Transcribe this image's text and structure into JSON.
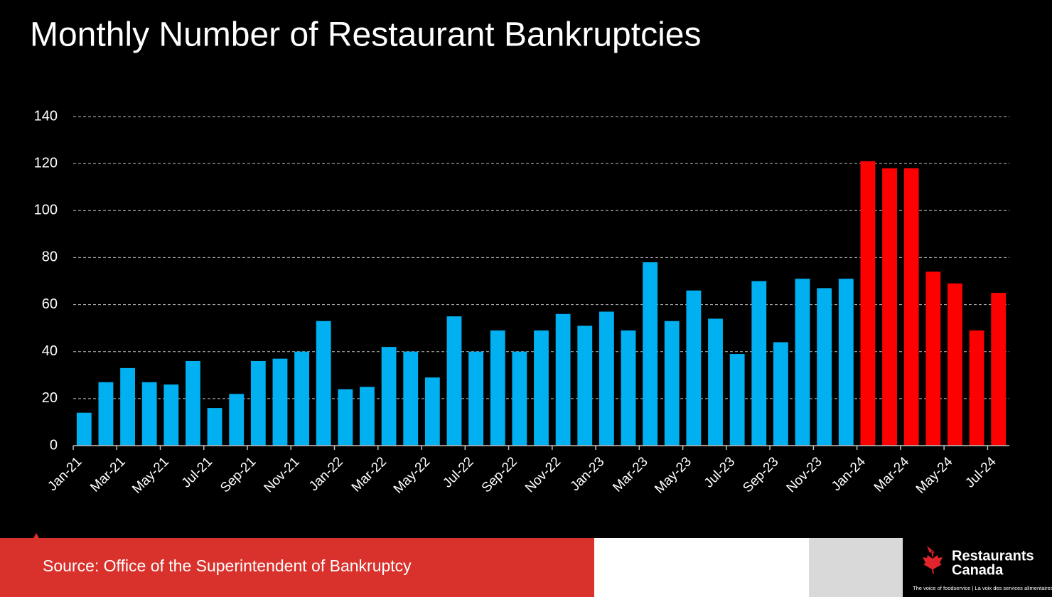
{
  "chart_data": {
    "type": "bar",
    "title": "Monthly Number of Restaurant Bankruptcies",
    "source": "Source: Office of the Superintendent of Bankruptcy",
    "categories": [
      "Jan-21",
      null,
      "Mar-21",
      null,
      "May-21",
      null,
      "Jul-21",
      null,
      "Sep-21",
      null,
      "Nov-21",
      null,
      "Jan-22",
      null,
      "Mar-22",
      null,
      "May-22",
      null,
      "Jul-22",
      null,
      "Sep-22",
      null,
      "Nov-22",
      null,
      "Jan-23",
      null,
      "Mar-23",
      null,
      "May-23",
      null,
      "Jul-23",
      null,
      "Sep-23",
      null,
      "Nov-23",
      null,
      "Jan-24",
      null,
      "Mar-24",
      null,
      "May-24",
      null,
      "Jul-24"
    ],
    "values": [
      14,
      27,
      33,
      27,
      26,
      36,
      16,
      22,
      36,
      37,
      40,
      53,
      24,
      25,
      42,
      40,
      29,
      55,
      40,
      49,
      40,
      49,
      56,
      51,
      57,
      49,
      78,
      53,
      66,
      54,
      39,
      70,
      44,
      71,
      67,
      71,
      121,
      118,
      118,
      74,
      69,
      49,
      65
    ],
    "colors": [
      "#00b0f0",
      "#00b0f0",
      "#00b0f0",
      "#00b0f0",
      "#00b0f0",
      "#00b0f0",
      "#00b0f0",
      "#00b0f0",
      "#00b0f0",
      "#00b0f0",
      "#00b0f0",
      "#00b0f0",
      "#00b0f0",
      "#00b0f0",
      "#00b0f0",
      "#00b0f0",
      "#00b0f0",
      "#00b0f0",
      "#00b0f0",
      "#00b0f0",
      "#00b0f0",
      "#00b0f0",
      "#00b0f0",
      "#00b0f0",
      "#00b0f0",
      "#00b0f0",
      "#00b0f0",
      "#00b0f0",
      "#00b0f0",
      "#00b0f0",
      "#00b0f0",
      "#00b0f0",
      "#00b0f0",
      "#00b0f0",
      "#00b0f0",
      "#00b0f0",
      "#ff0000",
      "#ff0000",
      "#ff0000",
      "#ff0000",
      "#ff0000",
      "#ff0000",
      "#ff0000"
    ],
    "ylim": [
      0,
      140
    ],
    "yticks": [
      0,
      20,
      40,
      60,
      80,
      100,
      120,
      140
    ],
    "grid": true
  },
  "branding": {
    "name_line1": "Restaurants",
    "name_line2": "Canada",
    "tagline": "The voice of foodservice | La voix des services alimentaires"
  }
}
